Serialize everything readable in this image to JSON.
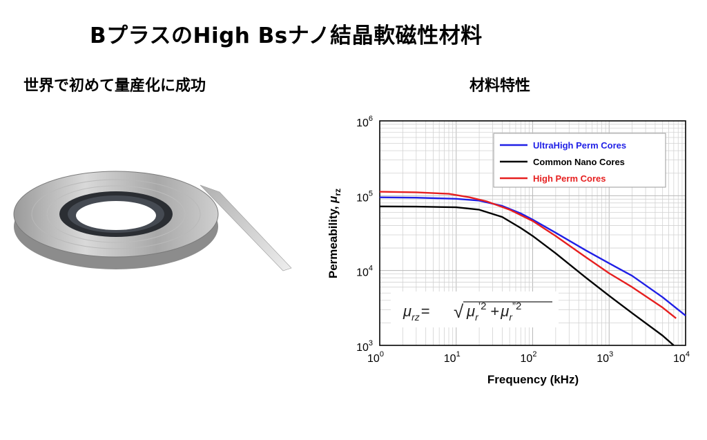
{
  "slide": {
    "title": "BプラスのHigh Bsナノ結晶軟磁性材料",
    "left_caption": "世界で初めて量産化に成功",
    "right_caption": "材料特性"
  },
  "chart_data": {
    "type": "line",
    "xlabel": "Frequency (kHz)",
    "ylabel_main": "Permeability, ",
    "ylabel_symbol": "μ",
    "ylabel_sub": "rz",
    "x_scale": "log",
    "y_scale": "log",
    "xlim": [
      1,
      10000
    ],
    "ylim": [
      1000,
      1000000
    ],
    "x_ticks": [
      {
        "base": "10",
        "exp": "0"
      },
      {
        "base": "10",
        "exp": "1"
      },
      {
        "base": "10",
        "exp": "2"
      },
      {
        "base": "10",
        "exp": "3"
      },
      {
        "base": "10",
        "exp": "4"
      }
    ],
    "y_ticks": [
      {
        "base": "10",
        "exp": "3"
      },
      {
        "base": "10",
        "exp": "4"
      },
      {
        "base": "10",
        "exp": "5"
      },
      {
        "base": "10",
        "exp": "6"
      }
    ],
    "grid": true,
    "legend_position": "top-right",
    "series": [
      {
        "name": "UltraHigh Perm Cores",
        "color": "#1f1fe6",
        "points": [
          [
            1,
            95000
          ],
          [
            3,
            94000
          ],
          [
            10,
            91000
          ],
          [
            20,
            86000
          ],
          [
            40,
            73000
          ],
          [
            70,
            58000
          ],
          [
            100,
            48000
          ],
          [
            200,
            32000
          ],
          [
            500,
            18500
          ],
          [
            1000,
            12500
          ],
          [
            2000,
            8500
          ],
          [
            5000,
            4400
          ],
          [
            10000,
            2500
          ]
        ]
      },
      {
        "name": "Common Nano Cores",
        "color": "#000000",
        "points": [
          [
            1,
            72000
          ],
          [
            3,
            71500
          ],
          [
            10,
            70000
          ],
          [
            20,
            65000
          ],
          [
            40,
            52000
          ],
          [
            70,
            37000
          ],
          [
            100,
            29000
          ],
          [
            200,
            17000
          ],
          [
            500,
            8000
          ],
          [
            1000,
            4600
          ],
          [
            2000,
            2700
          ],
          [
            5000,
            1350
          ],
          [
            7000,
            1000
          ]
        ]
      },
      {
        "name": "High Perm Cores",
        "color": "#e61f1f",
        "points": [
          [
            1,
            113000
          ],
          [
            3,
            111000
          ],
          [
            8,
            106000
          ],
          [
            15,
            95000
          ],
          [
            25,
            84000
          ],
          [
            50,
            65000
          ],
          [
            100,
            46000
          ],
          [
            200,
            29000
          ],
          [
            500,
            15000
          ],
          [
            1000,
            9200
          ],
          [
            2000,
            6000
          ],
          [
            5000,
            3200
          ],
          [
            7500,
            2300
          ]
        ]
      }
    ],
    "formula": {
      "lhs": "μ",
      "lhs_sub": "rz",
      "eq": "=",
      "root": "√",
      "term1": "μ",
      "term1_sub": "r",
      "term1_sup": "’2",
      "plus": "+",
      "term2": "μ",
      "term2_sub": "r",
      "term2_sup": "”2"
    }
  }
}
